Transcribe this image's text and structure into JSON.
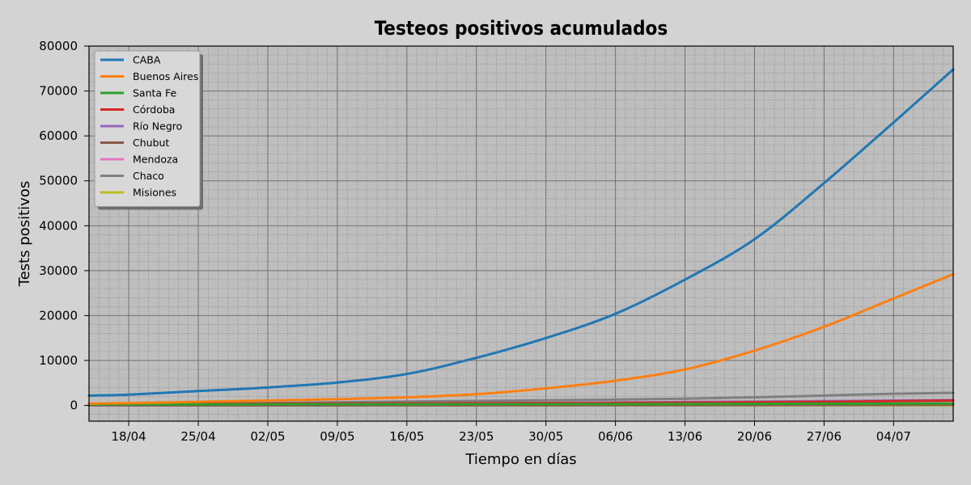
{
  "chart_data": {
    "type": "line",
    "title": "Testeos positivos acumulados",
    "xlabel": "Tiempo en días",
    "ylabel": "Tests positivos",
    "x": [
      "2020-04-14",
      "2020-04-18",
      "2020-04-25",
      "2020-05-02",
      "2020-05-09",
      "2020-05-16",
      "2020-05-23",
      "2020-05-30",
      "2020-06-06",
      "2020-06-13",
      "2020-06-20",
      "2020-06-27",
      "2020-07-04",
      "2020-07-10"
    ],
    "xlim": [
      "2020-04-14",
      "2020-07-10"
    ],
    "xticks": [
      {
        "date": "2020-04-18",
        "label": "18/04"
      },
      {
        "date": "2020-04-25",
        "label": "25/04"
      },
      {
        "date": "2020-05-02",
        "label": "02/05"
      },
      {
        "date": "2020-05-09",
        "label": "09/05"
      },
      {
        "date": "2020-05-16",
        "label": "16/05"
      },
      {
        "date": "2020-05-23",
        "label": "23/05"
      },
      {
        "date": "2020-05-30",
        "label": "30/05"
      },
      {
        "date": "2020-06-06",
        "label": "06/06"
      },
      {
        "date": "2020-06-13",
        "label": "13/06"
      },
      {
        "date": "2020-06-20",
        "label": "20/06"
      },
      {
        "date": "2020-06-27",
        "label": "27/06"
      },
      {
        "date": "2020-07-04",
        "label": "04/07"
      }
    ],
    "ylim": [
      -3500,
      80000
    ],
    "yticks": [
      0,
      10000,
      20000,
      30000,
      40000,
      50000,
      60000,
      70000,
      80000
    ],
    "grid": true,
    "minor_grid": true,
    "legend_position": "top-left",
    "series": [
      {
        "name": "CABA",
        "color": "#1f77b4",
        "values": [
          2200,
          2400,
          3200,
          4000,
          5100,
          7000,
          10600,
          15000,
          20400,
          28000,
          37000,
          49500,
          63000,
          74800
        ]
      },
      {
        "name": "Buenos Aires",
        "color": "#ff7f0e",
        "values": [
          400,
          500,
          800,
          1100,
          1400,
          1800,
          2500,
          3800,
          5500,
          8000,
          12200,
          17500,
          23800,
          29200
        ]
      },
      {
        "name": "Santa Fe",
        "color": "#2ca02c",
        "values": [
          200,
          210,
          220,
          240,
          250,
          260,
          270,
          280,
          300,
          320,
          340,
          370,
          400,
          430
        ]
      },
      {
        "name": "Córdoba",
        "color": "#d62728",
        "values": [
          250,
          280,
          330,
          380,
          420,
          450,
          480,
          520,
          560,
          620,
          700,
          800,
          950,
          1100
        ]
      },
      {
        "name": "Río Negro",
        "color": "#9467bd",
        "values": [
          100,
          150,
          200,
          260,
          330,
          400,
          480,
          560,
          650,
          750,
          850,
          950,
          1080,
          1200
        ]
      },
      {
        "name": "Chubut",
        "color": "#8c564b",
        "values": [
          20,
          20,
          20,
          20,
          20,
          30,
          30,
          40,
          50,
          60,
          80,
          100,
          120,
          150
        ]
      },
      {
        "name": "Mendoza",
        "color": "#e377c2",
        "values": [
          80,
          85,
          90,
          95,
          100,
          110,
          120,
          130,
          150,
          180,
          220,
          280,
          360,
          450
        ]
      },
      {
        "name": "Chaco",
        "color": "#7f7f7f",
        "values": [
          300,
          350,
          420,
          550,
          700,
          850,
          1000,
          1150,
          1300,
          1500,
          1800,
          2200,
          2600,
          2800
        ]
      },
      {
        "name": "Misiones",
        "color": "#bcbd22",
        "values": [
          20,
          20,
          20,
          25,
          25,
          25,
          25,
          30,
          30,
          30,
          35,
          35,
          35,
          40
        ]
      }
    ]
  }
}
